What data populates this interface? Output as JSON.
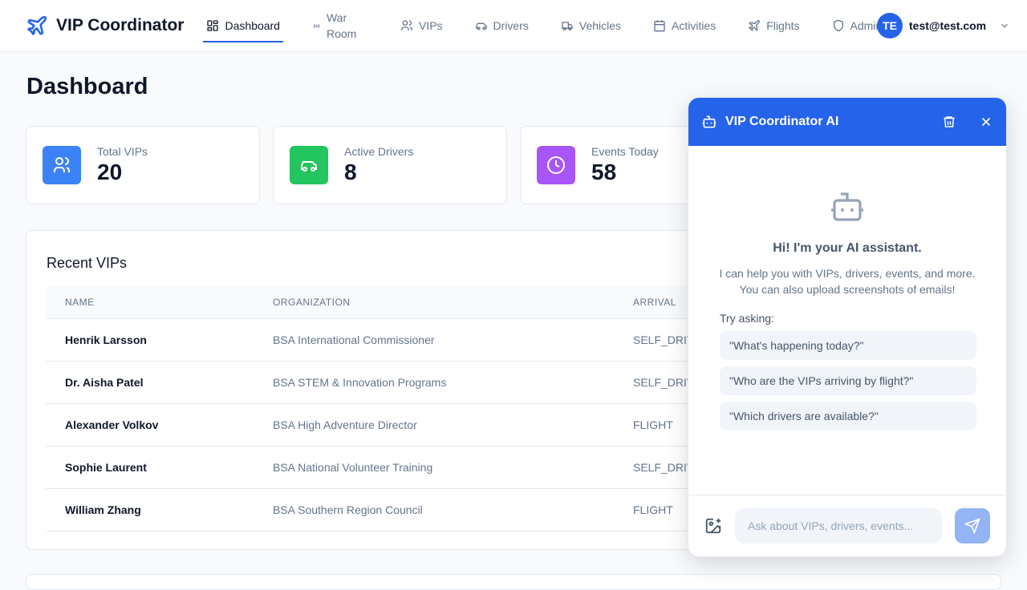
{
  "app": {
    "title": "VIP Coordinator"
  },
  "nav": [
    {
      "label": "Dashboard",
      "icon": "layout-grid-icon",
      "active": true
    },
    {
      "label": "War Room",
      "icon": "radio-icon"
    },
    {
      "label": "VIPs",
      "icon": "users-icon"
    },
    {
      "label": "Drivers",
      "icon": "car-icon"
    },
    {
      "label": "Vehicles",
      "icon": "truck-icon"
    },
    {
      "label": "Activities",
      "icon": "calendar-icon"
    },
    {
      "label": "Flights",
      "icon": "plane-icon"
    },
    {
      "label": "Admin",
      "icon": "shield-icon"
    }
  ],
  "user": {
    "initials": "TE",
    "email": "test@test.com"
  },
  "page": {
    "title": "Dashboard"
  },
  "stats": [
    {
      "label": "Total VIPs",
      "value": "20",
      "color": "#3b82f6"
    },
    {
      "label": "Active Drivers",
      "value": "8",
      "color": "#22c55e"
    },
    {
      "label": "Events Today",
      "value": "58",
      "color": "#a855f7"
    }
  ],
  "recent": {
    "title": "Recent VIPs",
    "columns": [
      "NAME",
      "ORGANIZATION",
      "ARRIVAL"
    ],
    "rows": [
      [
        "Henrik Larsson",
        "BSA International Commissioner",
        "SELF_DRIVE"
      ],
      [
        "Dr. Aisha Patel",
        "BSA STEM & Innovation Programs",
        "SELF_DRIVE"
      ],
      [
        "Alexander Volkov",
        "BSA High Adventure Director",
        "FLIGHT"
      ],
      [
        "Sophie Laurent",
        "BSA National Volunteer Training",
        "SELF_DRIVE"
      ],
      [
        "William Zhang",
        "BSA Southern Region Council",
        "FLIGHT"
      ]
    ]
  },
  "chat": {
    "title": "VIP Coordinator AI",
    "greeting": "Hi! I'm your AI assistant.",
    "desc1": "I can help you with VIPs, drivers, events, and more.",
    "desc2": "You can also upload screenshots of emails!",
    "try": "Try asking:",
    "suggestions": [
      "\"What's happening today?\"",
      "\"Who are the VIPs arriving by flight?\"",
      "\"Which drivers are available?\""
    ],
    "placeholder": "Ask about VIPs, drivers, events...",
    "accent": "#2563eb"
  }
}
